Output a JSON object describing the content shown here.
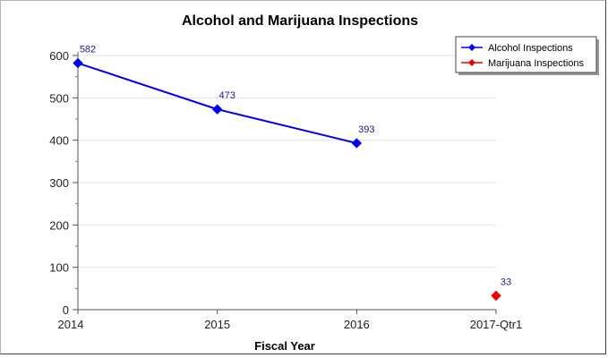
{
  "chart_data": {
    "type": "line",
    "title": "Alcohol and Marijuana Inspections",
    "xlabel": "Fiscal Year",
    "ylabel": "",
    "categories": [
      "2014",
      "2015",
      "2016",
      "2017-Qtr1"
    ],
    "ylim": [
      0,
      600
    ],
    "yticks": [
      0,
      100,
      200,
      300,
      400,
      500,
      600
    ],
    "grid": true,
    "legend_position": "top-right",
    "series": [
      {
        "name": "Alcohol Inspections",
        "color": "#0000ee",
        "values": [
          582,
          473,
          393,
          null
        ]
      },
      {
        "name": "Marijuana Inspections",
        "color": "#ee0000",
        "values": [
          null,
          null,
          null,
          33
        ]
      }
    ]
  }
}
